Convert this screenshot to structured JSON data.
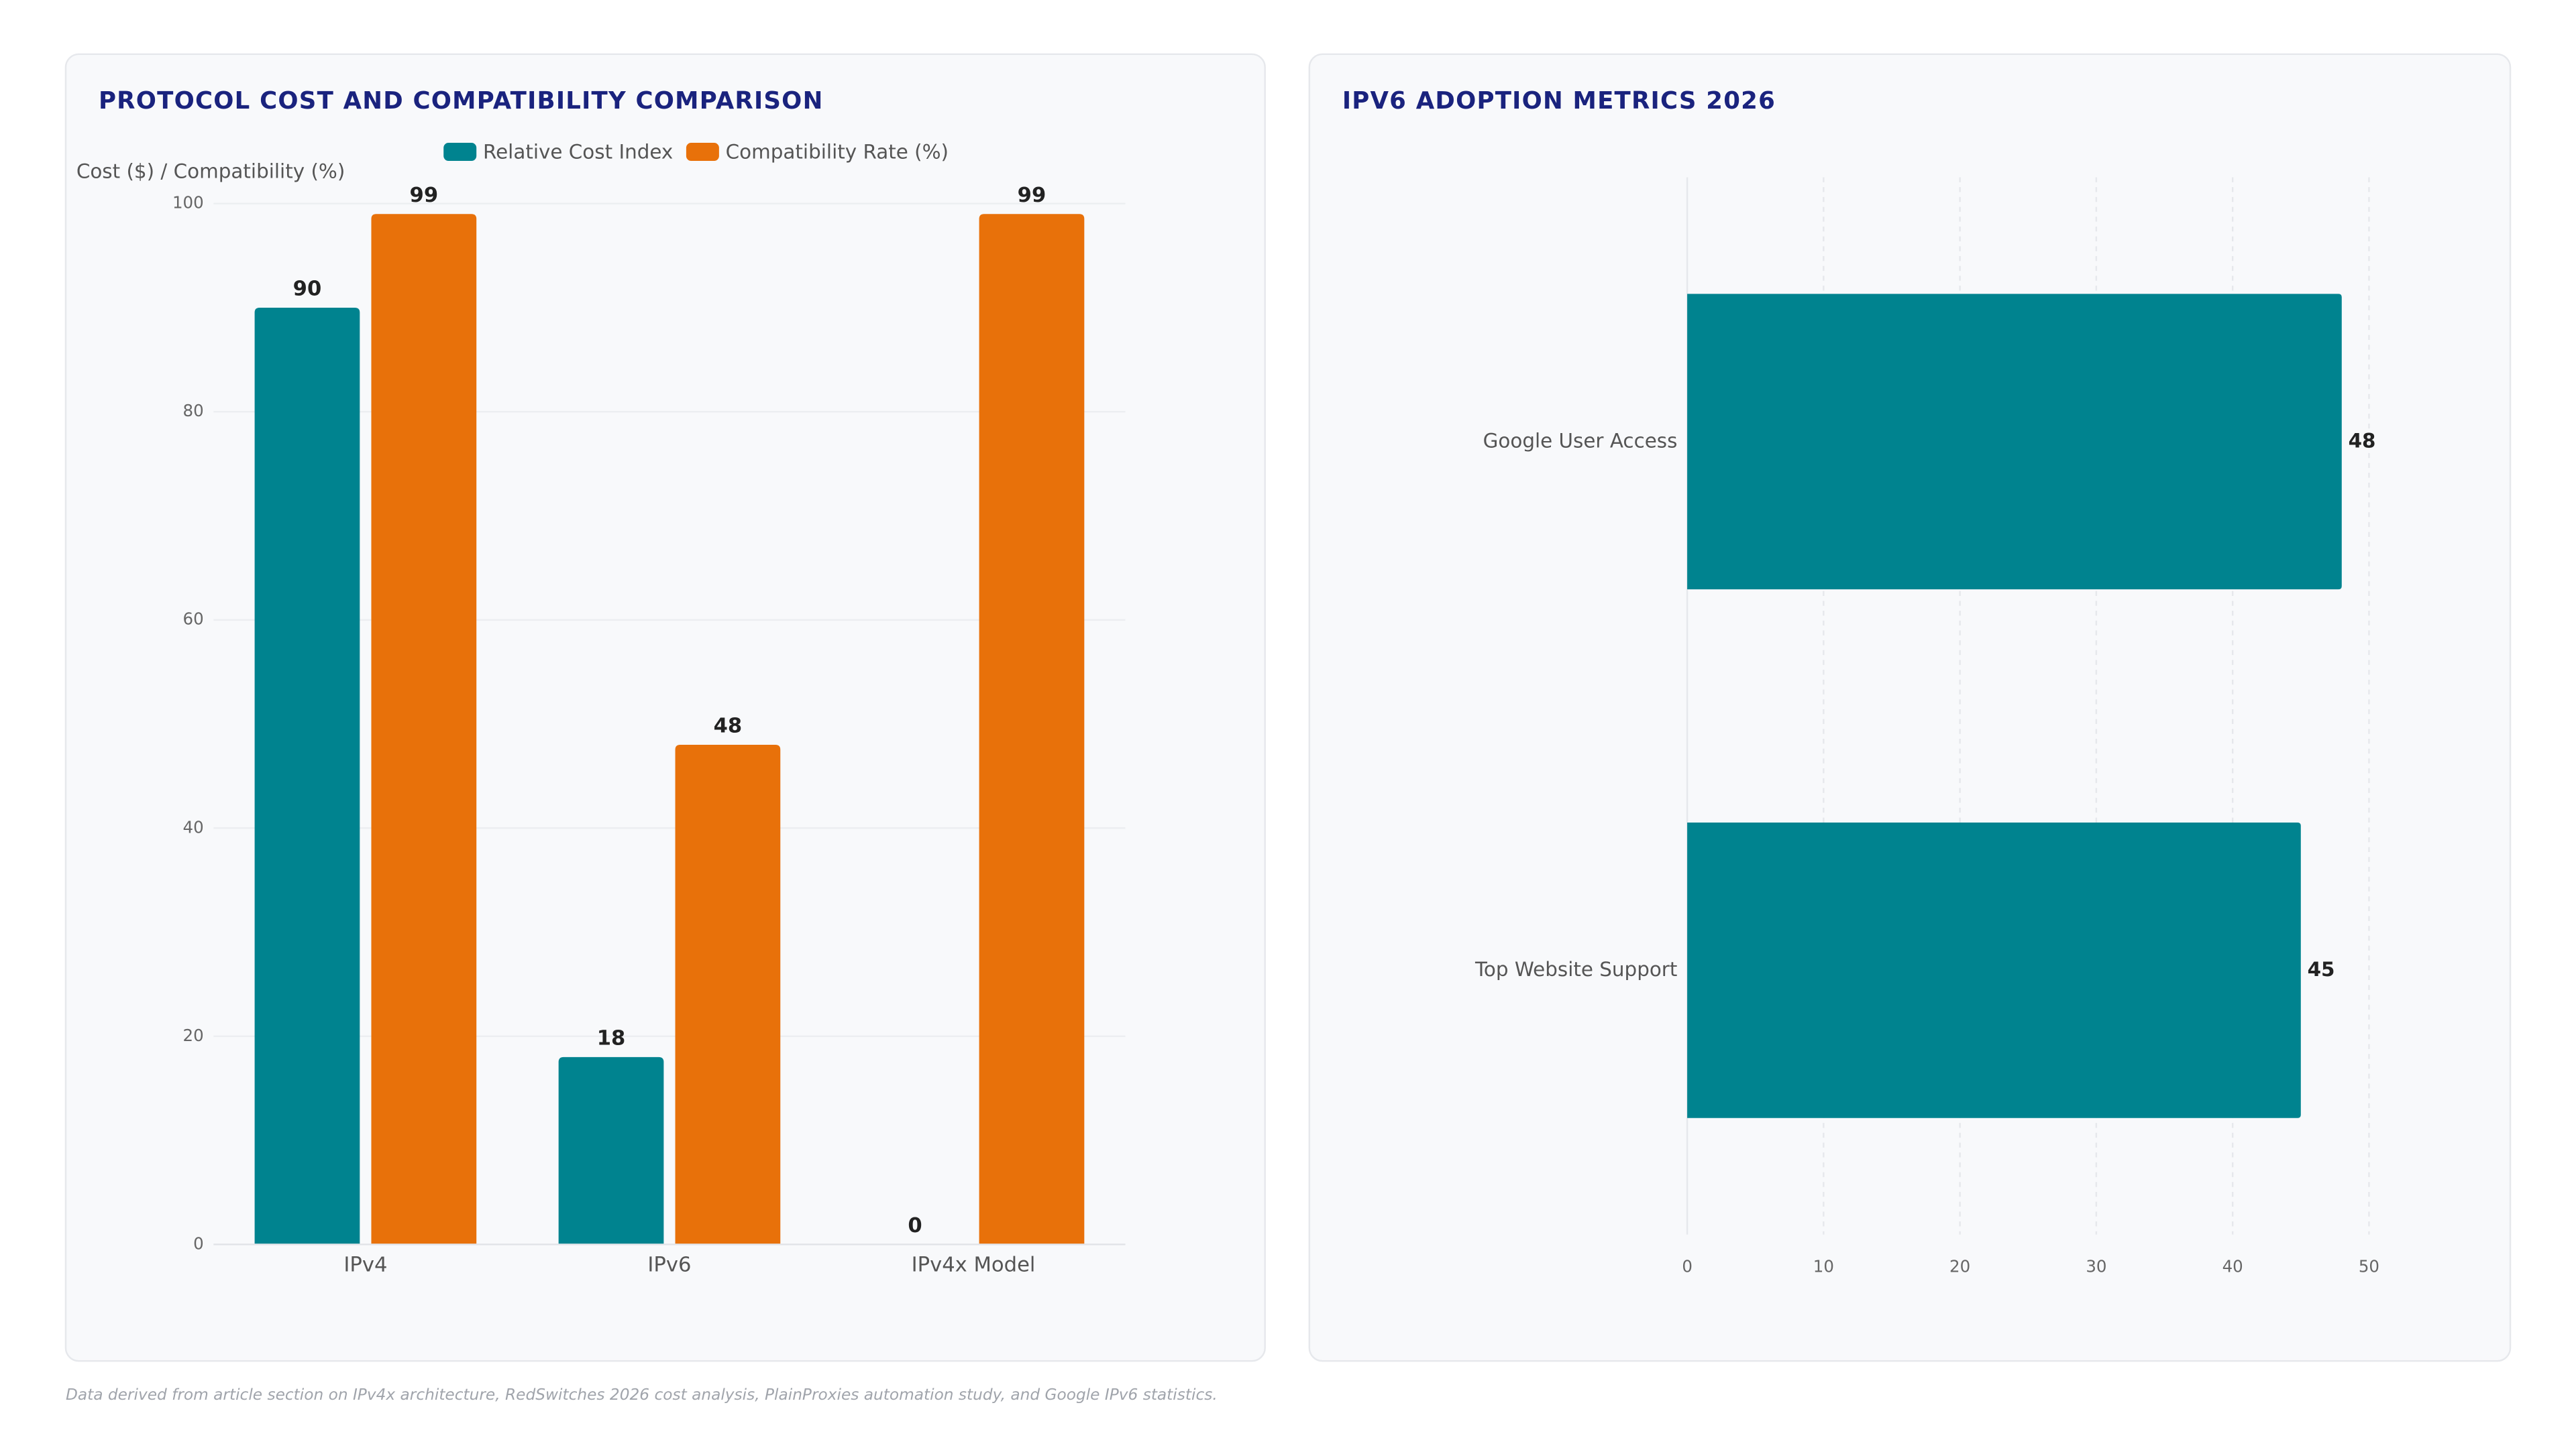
{
  "chart_data": [
    {
      "type": "bar",
      "title": "PROTOCOL COST AND COMPATIBILITY COMPARISON",
      "y_label": "Cost ($) / Compatibility (%)",
      "categories": [
        "IPv4",
        "IPv6",
        "IPv4x Model"
      ],
      "series": [
        {
          "name": "Relative Cost Index",
          "color": "#00838f",
          "values": [
            90,
            18,
            0
          ]
        },
        {
          "name": "Compatibility Rate (%)",
          "color": "#e8710a",
          "values": [
            99,
            48,
            99
          ]
        }
      ],
      "ylim": [
        0,
        100
      ],
      "yticks": [
        0,
        20,
        40,
        60,
        80,
        100
      ],
      "grid": true,
      "legend": "top"
    },
    {
      "type": "barh",
      "title": "IPV6 ADOPTION METRICS 2026",
      "categories": [
        "Google User Access",
        "Top Website Support"
      ],
      "values": [
        48,
        45
      ],
      "color": "#00838f",
      "xlim": [
        0,
        50
      ],
      "xticks": [
        0,
        10,
        20,
        30,
        40,
        50
      ],
      "grid": true
    }
  ],
  "footnote": "Data derived from article section on IPv4x architecture, RedSwitches 2026 cost analysis, PlainProxies automation study, and Google IPv6 statistics."
}
